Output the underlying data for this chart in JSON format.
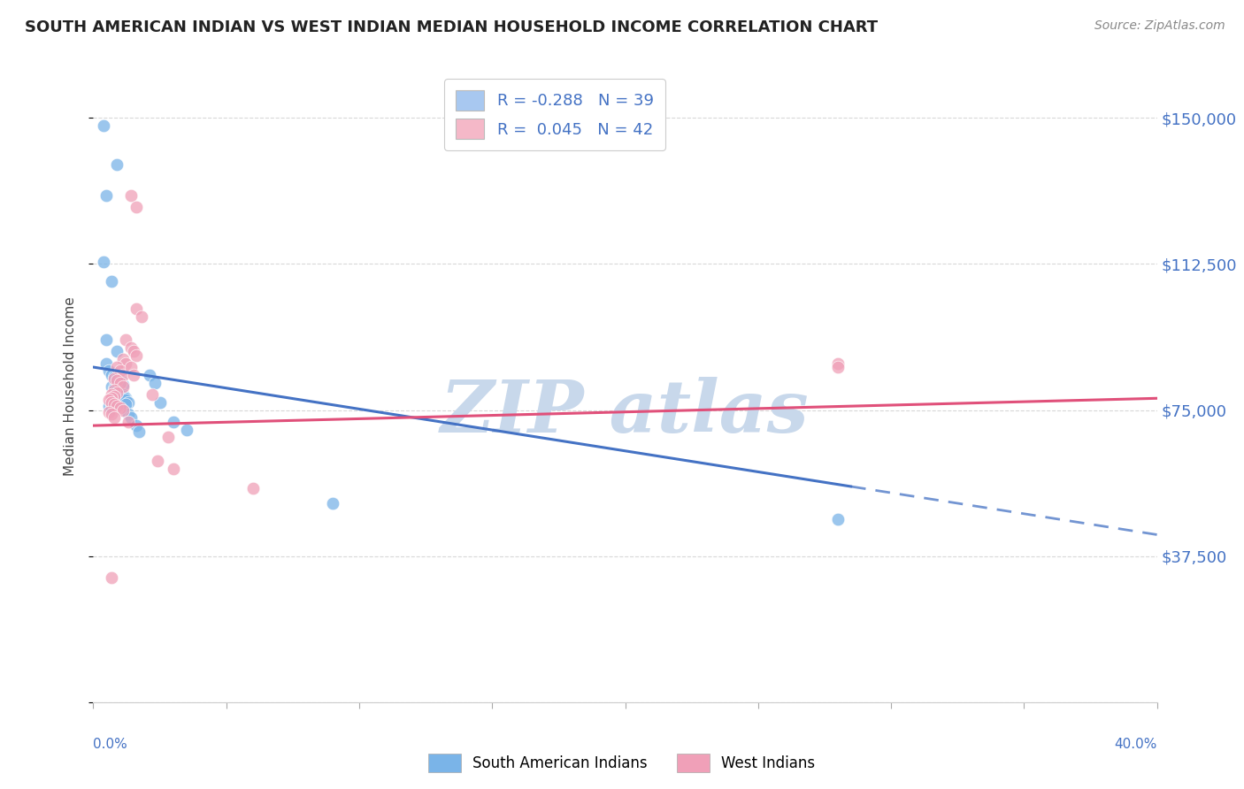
{
  "title": "SOUTH AMERICAN INDIAN VS WEST INDIAN MEDIAN HOUSEHOLD INCOME CORRELATION CHART",
  "source": "Source: ZipAtlas.com",
  "ylabel": "Median Household Income",
  "yticks": [
    0,
    37500,
    75000,
    112500,
    150000
  ],
  "ytick_labels": [
    "",
    "$37,500",
    "$75,000",
    "$112,500",
    "$150,000"
  ],
  "xlim": [
    0.0,
    0.4
  ],
  "ylim": [
    0,
    162000
  ],
  "background_color": "#ffffff",
  "grid_color": "#d8d8d8",
  "title_color": "#222222",
  "axis_label_color": "#4472c4",
  "watermark_color": "#c8d8eb",
  "legend_blue_patch": "#a8c8f0",
  "legend_pink_patch": "#f5b8c8",
  "legend_blue_text": "R = -0.288   N = 39",
  "legend_pink_text": "R =  0.045   N = 42",
  "blue_color": "#7ab4e8",
  "pink_color": "#f0a0b8",
  "blue_line_color": "#4472c4",
  "pink_line_color": "#e0507a",
  "blue_scatter": [
    [
      0.004,
      148000
    ],
    [
      0.005,
      130000
    ],
    [
      0.009,
      138000
    ],
    [
      0.004,
      113000
    ],
    [
      0.007,
      108000
    ],
    [
      0.005,
      93000
    ],
    [
      0.009,
      90000
    ],
    [
      0.005,
      87000
    ],
    [
      0.006,
      85000
    ],
    [
      0.007,
      84000
    ],
    [
      0.008,
      83500
    ],
    [
      0.009,
      83000
    ],
    [
      0.01,
      82500
    ],
    [
      0.01,
      82000
    ],
    [
      0.011,
      81500
    ],
    [
      0.007,
      81000
    ],
    [
      0.008,
      80500
    ],
    [
      0.009,
      80000
    ],
    [
      0.01,
      79500
    ],
    [
      0.01,
      79000
    ],
    [
      0.011,
      79000
    ],
    [
      0.011,
      78500
    ],
    [
      0.012,
      78000
    ],
    [
      0.012,
      77500
    ],
    [
      0.013,
      77000
    ],
    [
      0.012,
      76500
    ],
    [
      0.006,
      76000
    ],
    [
      0.007,
      75500
    ],
    [
      0.013,
      74000
    ],
    [
      0.014,
      73000
    ],
    [
      0.016,
      71000
    ],
    [
      0.017,
      69500
    ],
    [
      0.021,
      84000
    ],
    [
      0.023,
      82000
    ],
    [
      0.025,
      77000
    ],
    [
      0.03,
      72000
    ],
    [
      0.035,
      70000
    ],
    [
      0.09,
      51000
    ],
    [
      0.28,
      47000
    ]
  ],
  "pink_scatter": [
    [
      0.014,
      130000
    ],
    [
      0.016,
      127000
    ],
    [
      0.016,
      101000
    ],
    [
      0.018,
      99000
    ],
    [
      0.012,
      93000
    ],
    [
      0.014,
      91000
    ],
    [
      0.015,
      90000
    ],
    [
      0.016,
      89000
    ],
    [
      0.011,
      88000
    ],
    [
      0.012,
      87000
    ],
    [
      0.009,
      86000
    ],
    [
      0.01,
      85000
    ],
    [
      0.011,
      84000
    ],
    [
      0.008,
      83000
    ],
    [
      0.009,
      82500
    ],
    [
      0.01,
      82000
    ],
    [
      0.011,
      81000
    ],
    [
      0.008,
      80000
    ],
    [
      0.009,
      79500
    ],
    [
      0.007,
      79000
    ],
    [
      0.008,
      78500
    ],
    [
      0.007,
      78000
    ],
    [
      0.006,
      77500
    ],
    [
      0.007,
      77000
    ],
    [
      0.008,
      76500
    ],
    [
      0.009,
      76000
    ],
    [
      0.01,
      75500
    ],
    [
      0.011,
      75000
    ],
    [
      0.006,
      74500
    ],
    [
      0.007,
      74000
    ],
    [
      0.008,
      73000
    ],
    [
      0.013,
      72000
    ],
    [
      0.014,
      86000
    ],
    [
      0.015,
      84000
    ],
    [
      0.022,
      79000
    ],
    [
      0.028,
      68000
    ],
    [
      0.024,
      62000
    ],
    [
      0.03,
      60000
    ],
    [
      0.06,
      55000
    ],
    [
      0.28,
      87000
    ],
    [
      0.28,
      86000
    ],
    [
      0.007,
      32000
    ]
  ],
  "blue_trend_x0": 0.0,
  "blue_trend_y0": 86000,
  "blue_trend_x1": 0.4,
  "blue_trend_y1": 43000,
  "blue_trend_solid_to": 0.285,
  "pink_trend_x0": 0.0,
  "pink_trend_y0": 71000,
  "pink_trend_x1": 0.4,
  "pink_trend_y1": 78000
}
